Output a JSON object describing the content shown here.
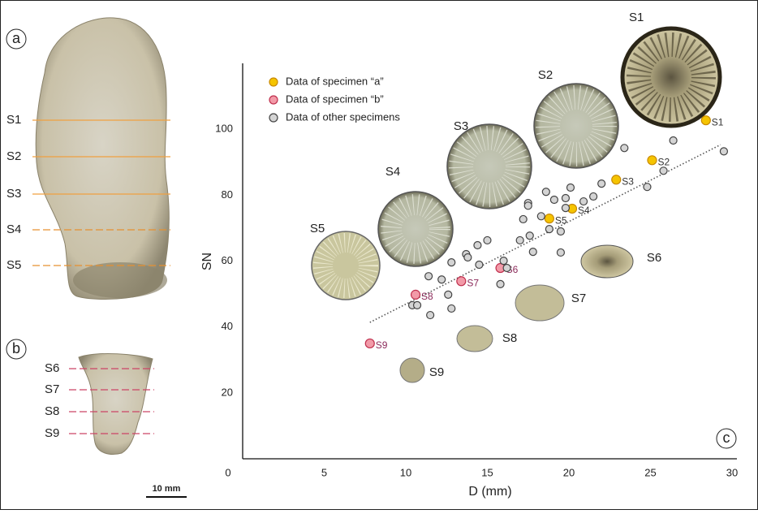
{
  "specimen_a": {
    "panel_label": "a",
    "section_labels": [
      "S1",
      "S2",
      "S3",
      "S4",
      "S5"
    ]
  },
  "specimen_b": {
    "panel_label": "b",
    "section_labels": [
      "S6",
      "S7",
      "S8",
      "S9"
    ]
  },
  "scale_bar": "10 mm",
  "panel_c_label": "c",
  "cross_sections": [
    "S1",
    "S2",
    "S3",
    "S4",
    "S5",
    "S6",
    "S7",
    "S8",
    "S9"
  ],
  "chart_data": {
    "type": "scatter",
    "xlabel": "D (mm)",
    "ylabel": "SN",
    "xlim": [
      0,
      30.3
    ],
    "ylim": [
      0,
      120
    ],
    "xticks": [
      0,
      5,
      10,
      15,
      20,
      25,
      30
    ],
    "yticks": [
      20,
      40,
      60,
      80,
      100
    ],
    "legend": "top-left",
    "trend_line": {
      "x": [
        7.8,
        29.3
      ],
      "y": [
        41.4,
        95.3
      ],
      "color": "#555555"
    },
    "series": [
      {
        "name": "Data of specimen “a”",
        "color": "#f5c400",
        "edgecolor": "#c98a00",
        "label_color": "#333333",
        "x": [
          28.4,
          25.1,
          22.9,
          20.2,
          18.8
        ],
        "values": [
          102.7,
          90.6,
          84.7,
          75.9,
          72.9
        ],
        "labels": [
          "S1",
          "S2",
          "S3",
          "S4",
          "S5"
        ]
      },
      {
        "name": "Data of specimen “b”",
        "color": "#f29aa8",
        "edgecolor": "#c0304e",
        "label_color": "#8b2a5a",
        "x": [
          15.8,
          13.4,
          10.6,
          7.8
        ],
        "values": [
          57.9,
          53.9,
          49.8,
          35.0
        ],
        "labels": [
          "S6",
          "S7",
          "S8",
          "S9"
        ]
      },
      {
        "name": "Data of other specimens",
        "color": "#d4d4d4",
        "edgecolor": "#444444",
        "x": [
          23.4,
          26.4,
          29.5,
          25.8,
          24.8,
          22.0,
          20.1,
          21.5,
          20.9,
          19.8,
          19.8,
          19.1,
          18.6,
          17.5,
          17.2,
          17.5,
          18.3,
          19.5,
          18.8,
          17.6,
          17.0,
          17.8,
          19.5,
          16.0,
          16.2,
          15.8,
          15.0,
          14.4,
          13.7,
          14.5,
          12.8,
          11.4,
          12.2,
          12.6,
          12.8,
          11.5,
          10.4,
          10.7,
          13.8
        ],
        "values": [
          94.3,
          96.6,
          93.3,
          87.4,
          82.5,
          83.5,
          82.3,
          79.6,
          78.1,
          79.1,
          76.1,
          78.6,
          81.0,
          77.6,
          72.7,
          76.8,
          73.6,
          69.0,
          69.7,
          67.7,
          66.3,
          62.8,
          62.6,
          60.1,
          57.9,
          53.0,
          66.3,
          64.8,
          62.1,
          58.9,
          59.6,
          55.4,
          54.4,
          49.8,
          45.6,
          43.6,
          46.6,
          46.6,
          61.1
        ]
      }
    ]
  }
}
